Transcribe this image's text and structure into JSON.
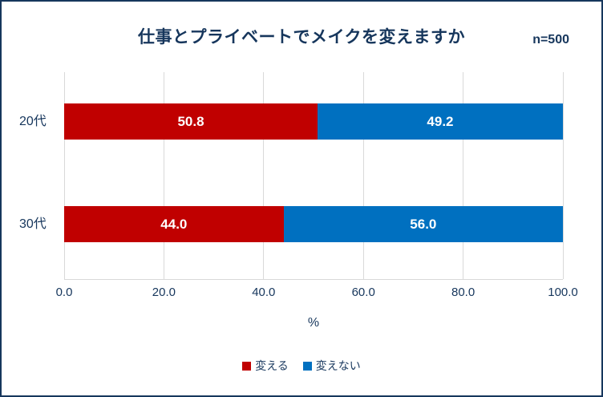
{
  "title": "仕事とプライベートでメイクを変えますか",
  "sample_size_label": "n=500",
  "chart_data": {
    "type": "bar",
    "stacked": true,
    "orientation": "horizontal",
    "title": "仕事とプライベートでメイクを変えますか",
    "annotation": "n=500",
    "categories": [
      "20代",
      "30代"
    ],
    "series": [
      {
        "name": "変える",
        "color": "#C00000",
        "values": [
          50.8,
          44.0
        ]
      },
      {
        "name": "変えない",
        "color": "#0070C0",
        "values": [
          49.2,
          56.0
        ]
      }
    ],
    "x_ticks": [
      "0.0",
      "20.0",
      "40.0",
      "60.0",
      "80.0",
      "100.0"
    ],
    "xlabel": "%",
    "xlim": [
      0,
      100
    ],
    "grid": "vertical",
    "gridline_color": "#D9D9D9",
    "legend_position": "bottom",
    "frame_color": "#16365C",
    "text_color": "#16365C"
  }
}
